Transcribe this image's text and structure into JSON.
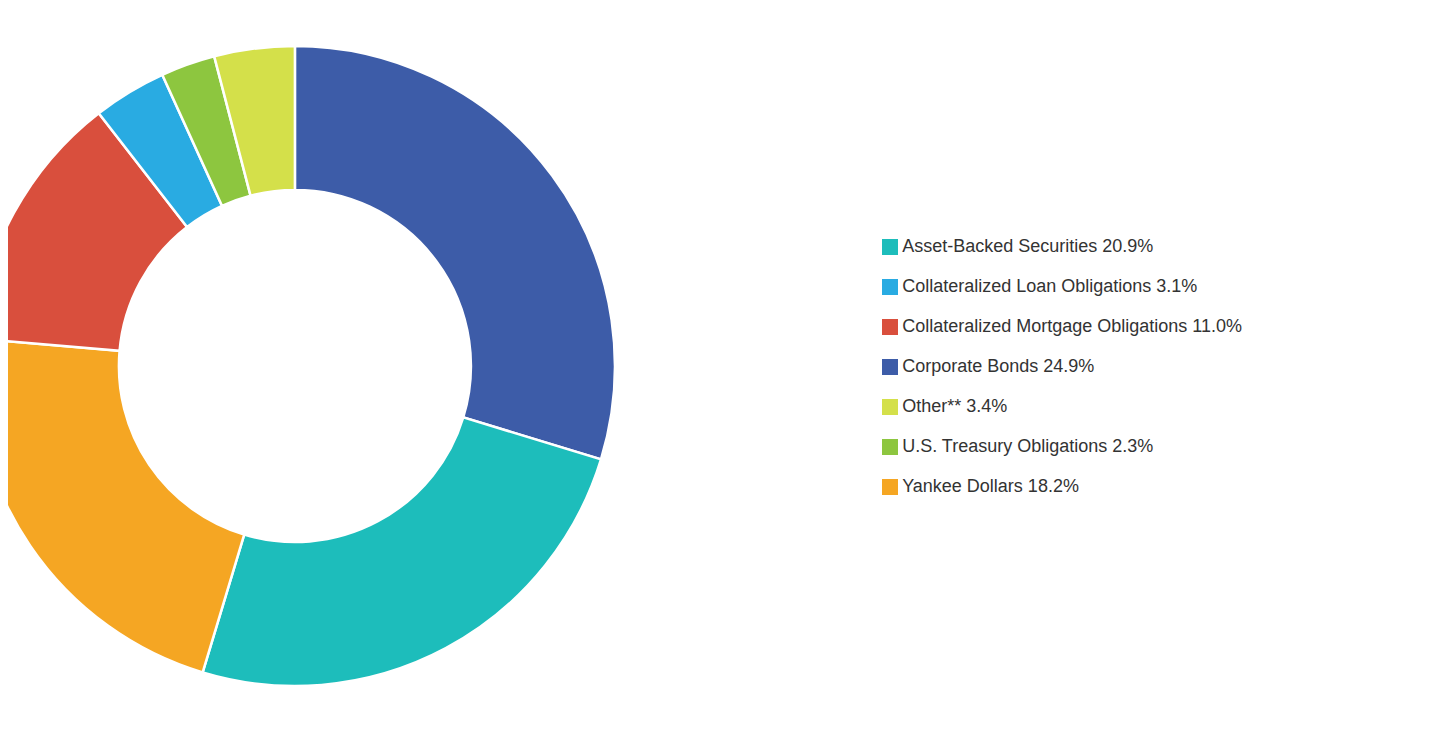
{
  "chart_data": {
    "type": "pie",
    "categories": [
      "Corporate Bonds 24.9%",
      "Asset-Backed Securities 20.9%",
      "Yankee Dollars 18.2%",
      "Collateralized Mortgage Obligations 11.0%",
      "Collateralized Loan Obligations 3.1%",
      "U.S. Treasury Obligations 2.3%",
      "Other** 3.4%"
    ],
    "values": [
      24.9,
      20.9,
      18.2,
      11.0,
      3.1,
      2.3,
      3.4
    ],
    "colors": [
      "#3D5CA8",
      "#1DBDBB",
      "#F5A623",
      "#D94F3D",
      "#29ABE2",
      "#8DC63F",
      "#D4E04A"
    ],
    "legend": "right"
  }
}
